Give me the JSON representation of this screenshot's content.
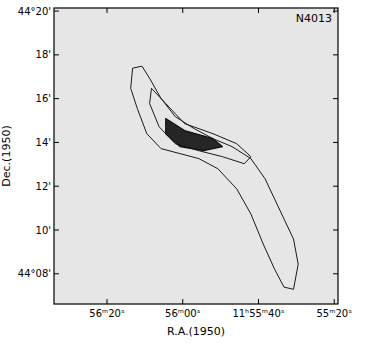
{
  "chart_data": {
    "type": "contour",
    "title": "N4013",
    "x_label": "R.A.(1950)",
    "y_label": "Dec.(1950)",
    "xlim": [
      94,
      19
    ],
    "ylim": [
      6.62,
      20.14
    ],
    "xticks": [
      {
        "value": 80,
        "label": "56ᵐ20ˢ"
      },
      {
        "value": 60,
        "label": "56ᵐ00ˢ"
      },
      {
        "value": 40,
        "label": "11ʰ55ᵐ40ˢ"
      },
      {
        "value": 20,
        "label": "55ᵐ20ˢ"
      }
    ],
    "yticks": [
      {
        "value": 20,
        "label": "44°20'"
      },
      {
        "value": 18,
        "label": "18'"
      },
      {
        "value": 16,
        "label": "16'"
      },
      {
        "value": 14,
        "label": "14'"
      },
      {
        "value": 12,
        "label": "12'"
      },
      {
        "value": 10,
        "label": "10'"
      },
      {
        "value": 8,
        "label": "44°08'"
      }
    ],
    "series": [
      {
        "color": "#1a1a1a",
        "x": [
          73.25,
          70.75,
          68.75,
          65.75,
          62,
          57,
          52,
          47,
          42,
          38.25,
          34.5,
          30.75,
          29.5,
          30.75,
          33.25,
          35.75,
          38.75,
          42,
          45.75,
          50.75,
          55.75,
          60.75,
          65.75,
          69.5,
          72,
          73.75
        ],
        "values": [
          17.39,
          17.48,
          16.93,
          16.01,
          15.18,
          14.63,
          14.17,
          13.81,
          13.26,
          12.34,
          10.96,
          9.59,
          8.44,
          7.29,
          7.39,
          8.21,
          9.36,
          10.73,
          11.88,
          12.8,
          13.26,
          13.49,
          13.72,
          14.4,
          15.55,
          16.47
        ]
      },
      {
        "color": "#1a1a1a",
        "x": [
          68.25,
          64.5,
          59.5,
          52,
          45.75,
          42,
          43.75,
          49.5,
          55.75,
          62,
          66.25,
          68.75
        ],
        "values": [
          16.47,
          15.78,
          14.86,
          14.4,
          13.94,
          13.35,
          13.03,
          13.35,
          13.62,
          13.94,
          14.72,
          15.78
        ]
      },
      {
        "color": "#111111",
        "x": [
          64.5,
          59.5,
          52,
          49.5,
          54.5,
          60.75,
          64.5
        ],
        "values": [
          15.09,
          14.54,
          14.17,
          13.81,
          13.62,
          13.81,
          14.4
        ]
      }
    ]
  }
}
